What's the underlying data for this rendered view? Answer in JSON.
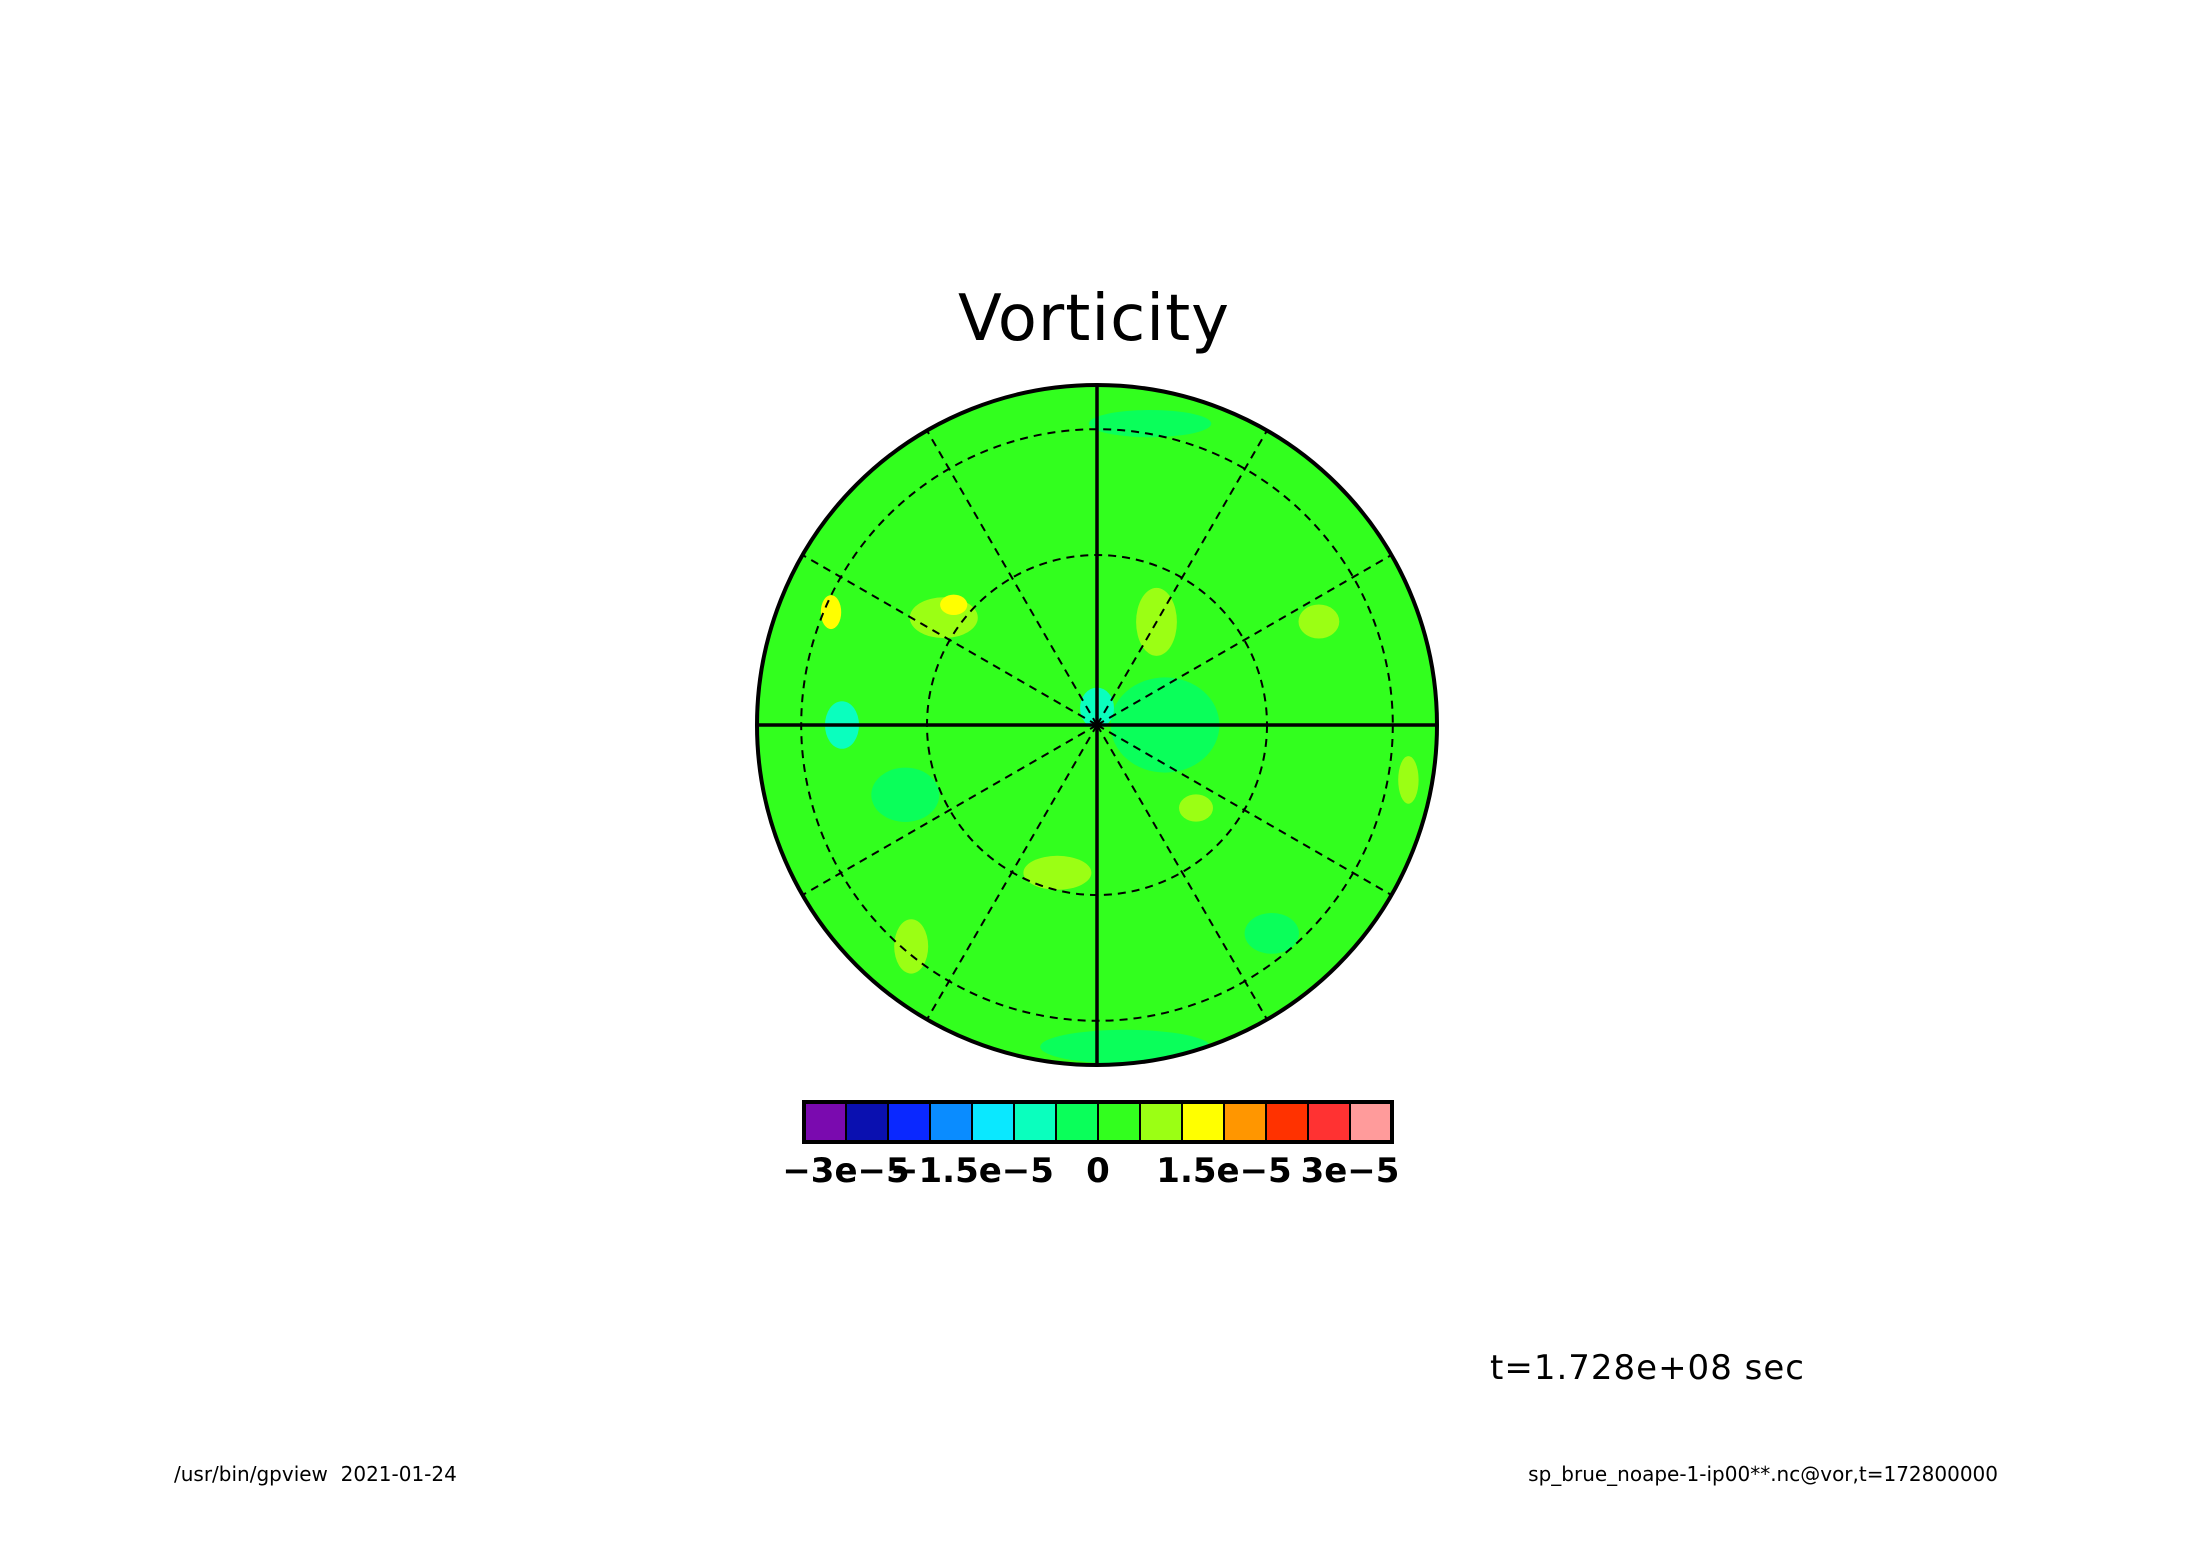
{
  "chart_data": {
    "type": "heatmap",
    "projection": "polar-stereographic",
    "title": "Vorticity",
    "grid": true,
    "dominant_level": "0 to 5e-6",
    "colorbar": {
      "levels": [
        -3.5e-05,
        -3e-05,
        -2.5e-05,
        -2e-05,
        -1.5e-05,
        -1e-05,
        -5e-06,
        0,
        5e-06,
        1e-05,
        1.5e-05,
        2e-05,
        2.5e-05,
        3e-05,
        3.5e-05
      ],
      "colors": [
        "#7a0aaf",
        "#0a10b0",
        "#0a28ff",
        "#0a8cff",
        "#0ae8ff",
        "#0affbe",
        "#0aff5a",
        "#32ff1e",
        "#9bff14",
        "#ffff00",
        "#ff9600",
        "#ff3200",
        "#ff3232",
        "#ff9b9b"
      ],
      "tick_labels": [
        {
          "label": "−3e−5",
          "value": -3e-05
        },
        {
          "label": "−1.5e−5",
          "value": -1.5e-05
        },
        {
          "label": "0",
          "value": 0
        },
        {
          "label": "1.5e−5",
          "value": 1.5e-05
        },
        {
          "label": "3e−5",
          "value": 3e-05
        }
      ]
    },
    "field_regions": [
      {
        "level": "-5e-6 to 0",
        "r": 0.2,
        "theta": 0,
        "rx": 0.16,
        "ry": 0.14
      },
      {
        "level": "-1e-5 to -5e-6",
        "r": 0.05,
        "theta": 90,
        "rx": 0.05,
        "ry": 0.06
      },
      {
        "level": "-1e-5 to -5e-6",
        "r": 0.75,
        "theta": 180,
        "rx": 0.05,
        "ry": 0.07
      },
      {
        "level": "5e-6 to 1e-5",
        "r": 0.55,
        "theta": 145,
        "rx": 0.1,
        "ry": 0.06
      },
      {
        "level": "1e-5 to 1.5e-5",
        "r": 0.55,
        "theta": 140,
        "rx": 0.04,
        "ry": 0.03
      },
      {
        "level": "1e-5 to 1.5e-5",
        "r": 0.85,
        "theta": 157,
        "rx": 0.03,
        "ry": 0.05
      },
      {
        "level": "5e-6 to 1e-5",
        "r": 0.85,
        "theta": 230,
        "rx": 0.05,
        "ry": 0.08
      },
      {
        "level": "5e-6 to 1e-5",
        "r": 0.45,
        "theta": 255,
        "rx": 0.1,
        "ry": 0.05
      },
      {
        "level": "5e-6 to 1e-5",
        "r": 0.72,
        "theta": 25,
        "rx": 0.06,
        "ry": 0.05
      },
      {
        "level": "5e-6 to 1e-5",
        "r": 0.93,
        "theta": 350,
        "rx": 0.03,
        "ry": 0.07
      },
      {
        "level": "-5e-6 to 0",
        "r": 0.8,
        "theta": 310,
        "rx": 0.08,
        "ry": 0.06
      },
      {
        "level": "-5e-6 to 0",
        "r": 0.6,
        "theta": 200,
        "rx": 0.1,
        "ry": 0.08
      },
      {
        "level": "-5e-6 to 0",
        "r": 0.95,
        "theta": 275,
        "rx": 0.25,
        "ry": 0.05
      },
      {
        "level": "5e-6 to 1e-5",
        "r": 0.35,
        "theta": 60,
        "rx": 0.06,
        "ry": 0.1
      },
      {
        "level": "5e-6 to 1e-5",
        "r": 0.38,
        "theta": 320,
        "rx": 0.05,
        "ry": 0.04
      },
      {
        "level": "-5e-6 to 0",
        "r": 0.9,
        "theta": 80,
        "rx": 0.18,
        "ry": 0.04
      }
    ]
  },
  "annotations": {
    "time": "t=1.728e+08 sec",
    "footer_left": "/usr/bin/gpview  2021-01-24",
    "footer_right": "sp_brue_noape-1-ip00**.nc@vor,t=172800000"
  }
}
